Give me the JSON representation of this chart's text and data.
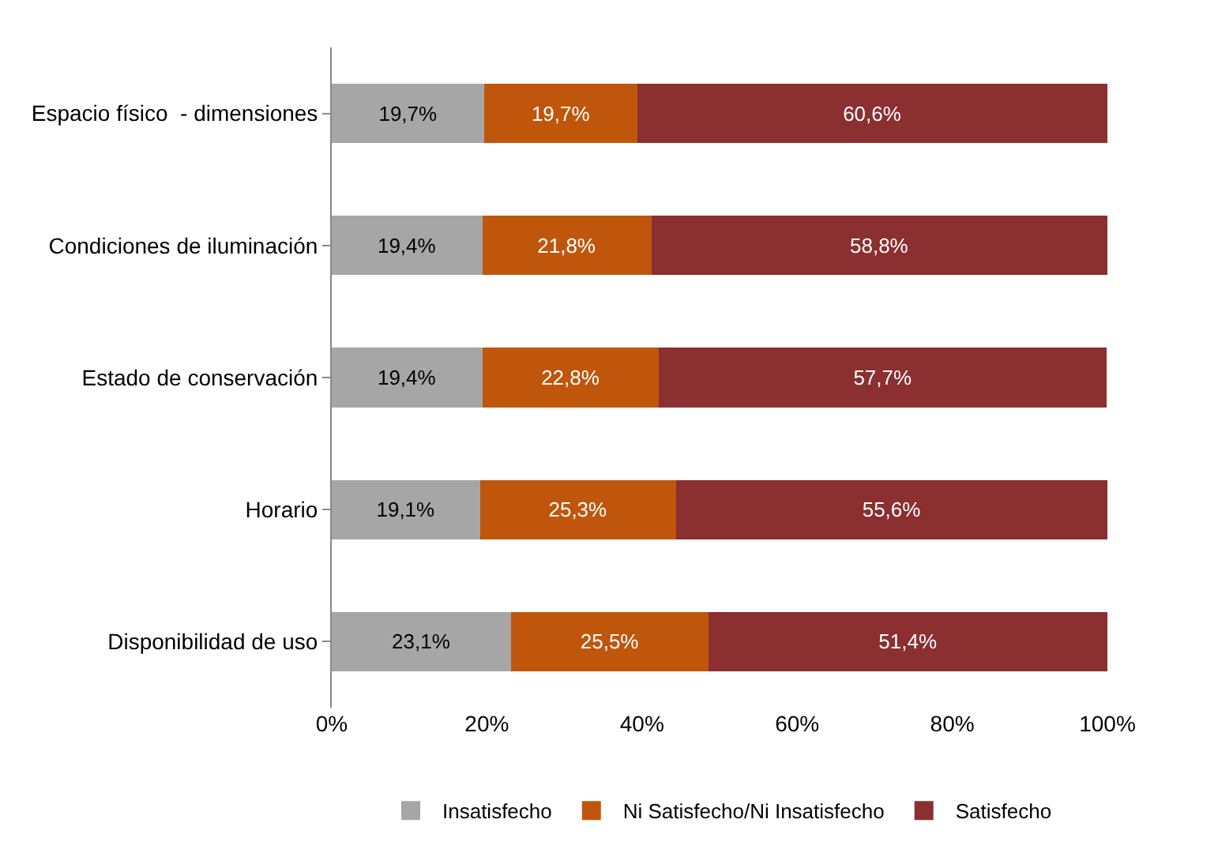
{
  "chart_data": {
    "type": "bar",
    "orientation": "horizontal",
    "stacked": true,
    "categories": [
      "Espacio físico  - dimensiones",
      "Condiciones de iluminación",
      "Estado de conservación",
      "Horario",
      "Disponibilidad de uso"
    ],
    "series": [
      {
        "name": "Insatisfecho",
        "color": "#a6a6a6",
        "values": [
          19.7,
          19.4,
          19.4,
          19.1,
          23.1
        ],
        "value_labels": [
          "19,7%",
          "19,4%",
          "19,4%",
          "19,1%",
          "23,1%"
        ]
      },
      {
        "name": "Ni Satisfecho/Ni Insatisfecho",
        "color": "#c0560c",
        "values": [
          19.7,
          21.8,
          22.8,
          25.3,
          25.5
        ],
        "value_labels": [
          "19,7%",
          "21,8%",
          "22,8%",
          "25,3%",
          "25,5%"
        ]
      },
      {
        "name": "Satisfecho",
        "color": "#8b2f30",
        "values": [
          60.6,
          58.8,
          57.7,
          55.6,
          51.4
        ],
        "value_labels": [
          "60,6%",
          "58,8%",
          "57,7%",
          "55,6%",
          "51,4%"
        ]
      }
    ],
    "xlim": [
      0,
      100
    ],
    "xticks": [
      {
        "value": 0,
        "label": "0%"
      },
      {
        "value": 20,
        "label": "20%"
      },
      {
        "value": 40,
        "label": "40%"
      },
      {
        "value": 60,
        "label": "60%"
      },
      {
        "value": 80,
        "label": "80%"
      },
      {
        "value": 100,
        "label": "100%"
      }
    ],
    "grid": false,
    "legend": "bottom"
  }
}
